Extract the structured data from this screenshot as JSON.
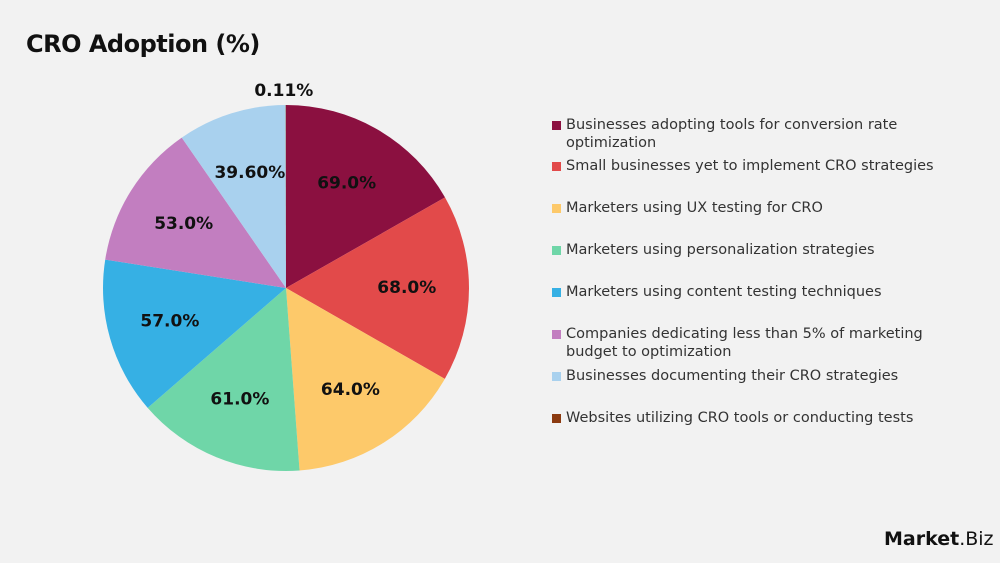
{
  "chart_data": {
    "type": "pie",
    "title": "CRO Adoption (%)",
    "categories": [
      "Businesses adopting tools for conversion rate optimization",
      "Small businesses yet to implement CRO strategies",
      "Marketers using UX testing for CRO",
      "Marketers using personalization strategies",
      "Marketers using content testing techniques",
      "Companies dedicating less than 5% of marketing budget to optimization",
      "Businesses documenting their CRO strategies",
      "Websites utilizing CRO tools or conducting tests"
    ],
    "values": [
      69.0,
      68.0,
      64.0,
      61.0,
      57.0,
      53.0,
      39.6,
      0.11
    ],
    "data_labels": [
      "69.0%",
      "68.0%",
      "64.0%",
      "61.0%",
      "57.0%",
      "53.0%",
      "39.60%",
      "0.11%"
    ],
    "colors": [
      "#8B1040",
      "#E24A4A",
      "#FDC96A",
      "#6FD6A8",
      "#36B0E4",
      "#C27EC0",
      "#A9D1EE",
      "#8B3A10"
    ],
    "legend_position": "right"
  },
  "brand": {
    "logo_left": "Market",
    "logo_right": ".Biz"
  }
}
